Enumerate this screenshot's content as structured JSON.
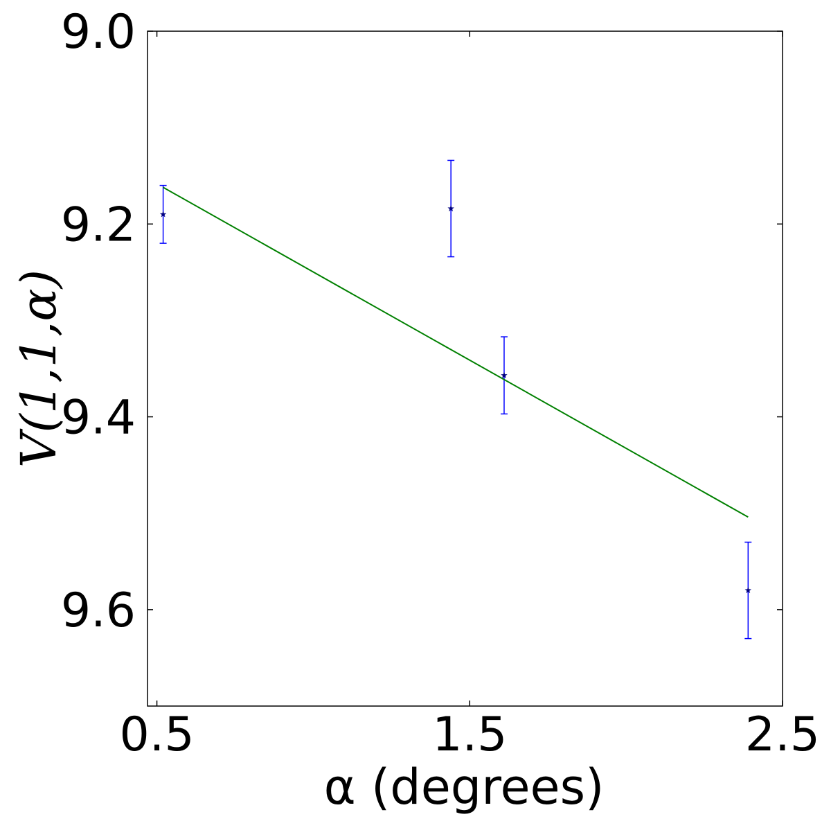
{
  "chart_data": {
    "type": "scatter",
    "x_label": "α (degrees)",
    "y_label": "V(1,1,α)",
    "x": [
      0.52,
      1.44,
      1.61,
      2.39
    ],
    "values": [
      9.19,
      9.184,
      9.357,
      9.58
    ],
    "errors": [
      0.03,
      0.05,
      0.04,
      0.05
    ],
    "color": "#0000ff",
    "marker_color": "#000080",
    "fit": {
      "type": "line",
      "x": [
        0.52,
        2.39
      ],
      "values": [
        9.162,
        9.504
      ],
      "color": "#008000"
    },
    "xlim": [
      0.47,
      2.5
    ],
    "ylim": [
      9.0,
      9.7
    ],
    "y_inverted": true,
    "xticks": [
      0.5,
      1.5,
      2.5
    ],
    "yticks": [
      {
        "value": 9.0,
        "label": "9.0"
      },
      9.2,
      9.4,
      9.6
    ]
  }
}
